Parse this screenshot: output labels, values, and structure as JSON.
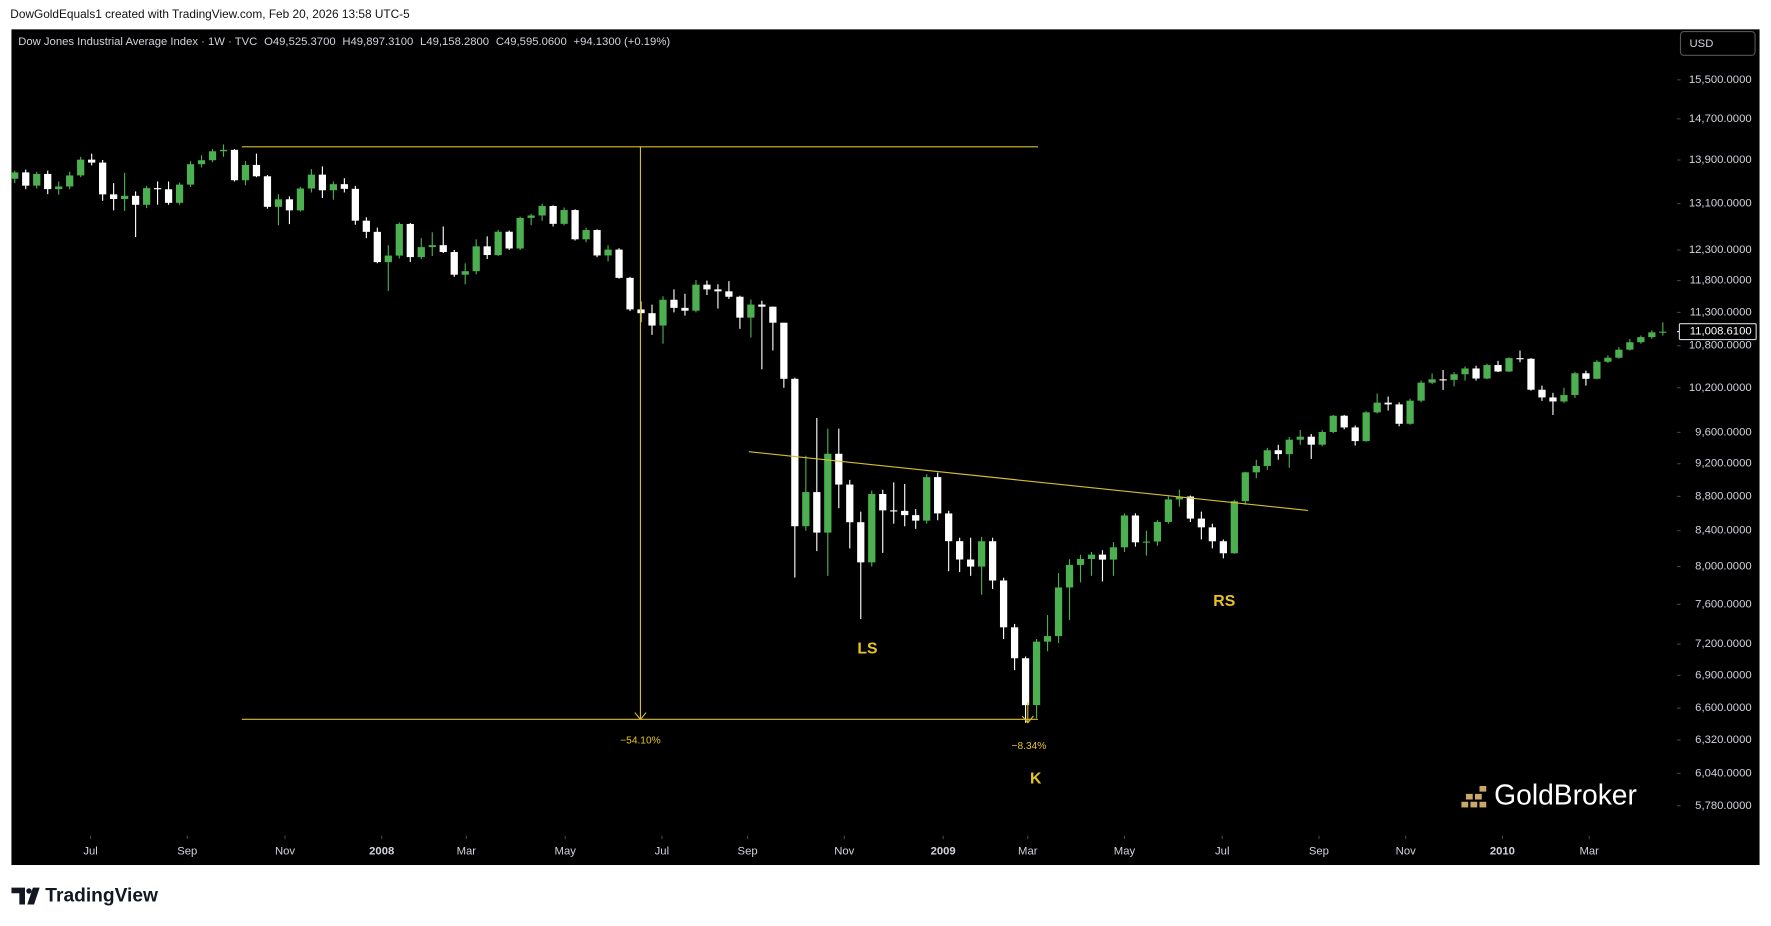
{
  "chart_data": {
    "type": "candlestick",
    "attribution": "DowGoldEquals1 created with TradingView.com, Feb 20, 2026 13:58 UTC-5",
    "title": "Dow Jones Industrial Average Index · 1W · TVC",
    "header_values": [
      "O49,525.3700",
      "H49,897.3100",
      "L49,158.2800",
      "C49,595.0600",
      "+94.1300 (+0.19%)"
    ],
    "currency": "USD",
    "log_scale": true,
    "up_color": "#4caf50",
    "down_color": "#ffffff",
    "drawing_color": "#d8bd2c",
    "ylim": [
      5550,
      16600
    ],
    "yticks": [
      {
        "value": 15500,
        "label": "15,500.0000"
      },
      {
        "value": 14700,
        "label": "14,700.0000"
      },
      {
        "value": 13900,
        "label": "13,900.0000"
      },
      {
        "value": 13100,
        "label": "13,100.0000"
      },
      {
        "value": 12300,
        "label": "12,300.0000"
      },
      {
        "value": 11800,
        "label": "11,800.0000"
      },
      {
        "value": 11300,
        "label": "11,300.0000"
      },
      {
        "value": 10800,
        "label": "10,800.0000"
      },
      {
        "value": 10200,
        "label": "10,200.0000"
      },
      {
        "value": 9600,
        "label": "9,600.0000"
      },
      {
        "value": 9200,
        "label": "9,200.0000"
      },
      {
        "value": 8800,
        "label": "8,800.0000"
      },
      {
        "value": 8400,
        "label": "8,400.0000"
      },
      {
        "value": 8000,
        "label": "8,000.0000"
      },
      {
        "value": 7600,
        "label": "7,600.0000"
      },
      {
        "value": 7200,
        "label": "7,200.0000"
      },
      {
        "value": 6900,
        "label": "6,900.0000"
      },
      {
        "value": 6600,
        "label": "6,600.0000"
      },
      {
        "value": 6320,
        "label": "6,320.0000"
      },
      {
        "value": 6040,
        "label": "6,040.0000"
      },
      {
        "value": 5780,
        "label": "5,780.0000"
      }
    ],
    "last_price": {
      "value": 11008.61,
      "label": "11,008.6100"
    },
    "xlim": [
      -0.3,
      151.3
    ],
    "xticks": [
      {
        "value": 6.9,
        "label": "Jul"
      },
      {
        "value": 15.7,
        "label": "Sep"
      },
      {
        "value": 24.6,
        "label": "Nov"
      },
      {
        "value": 33.4,
        "label": "2008"
      },
      {
        "value": 41.1,
        "label": "Mar"
      },
      {
        "value": 50.1,
        "label": "May"
      },
      {
        "value": 58.9,
        "label": "Jul"
      },
      {
        "value": 66.7,
        "label": "Sep"
      },
      {
        "value": 75.5,
        "label": "Nov"
      },
      {
        "value": 84.5,
        "label": "2009"
      },
      {
        "value": 92.2,
        "label": "Mar"
      },
      {
        "value": 101.0,
        "label": "May"
      },
      {
        "value": 109.9,
        "label": "Jul"
      },
      {
        "value": 118.7,
        "label": "Sep"
      },
      {
        "value": 126.6,
        "label": "Nov"
      },
      {
        "value": 135.4,
        "label": "2010"
      },
      {
        "value": 143.3,
        "label": "Mar"
      }
    ],
    "candles": [
      [
        13550,
        13700,
        13470,
        13668
      ],
      [
        13668,
        13720,
        13360,
        13424
      ],
      [
        13424,
        13680,
        13370,
        13639
      ],
      [
        13639,
        13700,
        13270,
        13361
      ],
      [
        13361,
        13500,
        13260,
        13409
      ],
      [
        13409,
        13680,
        13360,
        13612
      ],
      [
        13612,
        13960,
        13580,
        13907
      ],
      [
        13907,
        14020,
        13800,
        13851
      ],
      [
        13851,
        13900,
        13150,
        13266
      ],
      [
        13266,
        13470,
        12980,
        13182
      ],
      [
        13182,
        13660,
        12970,
        13240
      ],
      [
        13240,
        13320,
        12518,
        13079
      ],
      [
        13079,
        13420,
        13020,
        13379
      ],
      [
        13379,
        13500,
        13080,
        13358
      ],
      [
        13358,
        13500,
        13080,
        13114
      ],
      [
        13114,
        13480,
        13080,
        13443
      ],
      [
        13443,
        13880,
        13400,
        13821
      ],
      [
        13821,
        13990,
        13760,
        13896
      ],
      [
        13896,
        14110,
        13860,
        14066
      ],
      [
        14066,
        14198,
        13960,
        14093
      ],
      [
        14093,
        14110,
        13500,
        13523
      ],
      [
        13523,
        13880,
        13430,
        13807
      ],
      [
        13807,
        14020,
        13580,
        13596
      ],
      [
        13596,
        13620,
        13010,
        13043
      ],
      [
        13043,
        13270,
        12720,
        13177
      ],
      [
        13177,
        13230,
        12740,
        12981
      ],
      [
        12981,
        13400,
        12960,
        13372
      ],
      [
        13372,
        13730,
        13300,
        13626
      ],
      [
        13626,
        13780,
        13200,
        13340
      ],
      [
        13340,
        13500,
        13170,
        13451
      ],
      [
        13451,
        13560,
        13300,
        13366
      ],
      [
        13366,
        13420,
        12730,
        12800
      ],
      [
        12800,
        12860,
        12500,
        12607
      ],
      [
        12607,
        12680,
        12080,
        12099
      ],
      [
        12099,
        12380,
        11634,
        12207
      ],
      [
        12207,
        12770,
        12160,
        12743
      ],
      [
        12743,
        12760,
        12100,
        12182
      ],
      [
        12182,
        12500,
        12150,
        12348
      ],
      [
        12348,
        12600,
        12200,
        12381
      ],
      [
        12381,
        12700,
        12250,
        12266
      ],
      [
        12266,
        12300,
        11860,
        11894
      ],
      [
        11894,
        12080,
        11740,
        11951
      ],
      [
        11951,
        12480,
        11900,
        12361
      ],
      [
        12361,
        12530,
        12150,
        12216
      ],
      [
        12216,
        12640,
        12200,
        12609
      ],
      [
        12609,
        12630,
        12300,
        12325
      ],
      [
        12325,
        12870,
        12300,
        12849
      ],
      [
        12849,
        12920,
        12720,
        12891
      ],
      [
        12891,
        13100,
        12800,
        13058
      ],
      [
        13058,
        13070,
        12700,
        12745
      ],
      [
        12745,
        13030,
        12720,
        12986
      ],
      [
        12986,
        13000,
        12460,
        12480
      ],
      [
        12480,
        12680,
        12430,
        12638
      ],
      [
        12638,
        12650,
        12180,
        12209
      ],
      [
        12209,
        12380,
        12110,
        12307
      ],
      [
        12307,
        12330,
        11830,
        11843
      ],
      [
        11843,
        11860,
        11320,
        11346
      ],
      [
        11346,
        11470,
        11150,
        11288
      ],
      [
        11288,
        11420,
        10960,
        11100
      ],
      [
        11100,
        11550,
        10830,
        11496
      ],
      [
        11496,
        11660,
        11300,
        11370
      ],
      [
        11370,
        11590,
        11250,
        11326
      ],
      [
        11326,
        11810,
        11300,
        11734
      ],
      [
        11734,
        11800,
        11570,
        11659
      ],
      [
        11659,
        11740,
        11360,
        11628
      ],
      [
        11628,
        11790,
        11510,
        11543
      ],
      [
        11543,
        11560,
        11050,
        11220
      ],
      [
        11220,
        11500,
        10920,
        11421
      ],
      [
        11421,
        11480,
        10460,
        11388
      ],
      [
        11388,
        11390,
        10730,
        11143
      ],
      [
        11143,
        11140,
        10200,
        10325
      ],
      [
        10325,
        10340,
        7882,
        8451
      ],
      [
        8451,
        9300,
        8400,
        8852
      ],
      [
        8852,
        9790,
        8170,
        8378
      ],
      [
        8378,
        9650,
        7900,
        9325
      ],
      [
        9325,
        9650,
        8660,
        8943
      ],
      [
        8943,
        9000,
        8200,
        8497
      ],
      [
        8497,
        8620,
        7449,
        8046
      ],
      [
        8046,
        8870,
        8000,
        8829
      ],
      [
        8829,
        8880,
        8150,
        8635
      ],
      [
        8635,
        8970,
        8480,
        8629
      ],
      [
        8629,
        8950,
        8450,
        8579
      ],
      [
        8579,
        8650,
        8420,
        8515
      ],
      [
        8515,
        9070,
        8480,
        9034
      ],
      [
        9034,
        9090,
        8520,
        8599
      ],
      [
        8599,
        8630,
        7950,
        8281
      ],
      [
        8281,
        8320,
        7940,
        8077
      ],
      [
        8077,
        8320,
        7900,
        8000
      ],
      [
        8000,
        8330,
        7700,
        8280
      ],
      [
        8280,
        8320,
        7760,
        7850
      ],
      [
        7850,
        7880,
        7250,
        7366
      ],
      [
        7366,
        7400,
        6950,
        7063
      ],
      [
        7063,
        7080,
        6470,
        6627
      ],
      [
        6627,
        7250,
        6510,
        7224
      ],
      [
        7224,
        7490,
        7130,
        7279
      ],
      [
        7279,
        7930,
        7210,
        7776
      ],
      [
        7776,
        8080,
        7440,
        8018
      ],
      [
        8018,
        8130,
        7830,
        8083
      ],
      [
        8083,
        8160,
        7900,
        8131
      ],
      [
        8131,
        8180,
        7840,
        8076
      ],
      [
        8076,
        8270,
        7900,
        8212
      ],
      [
        8212,
        8600,
        8160,
        8575
      ],
      [
        8575,
        8600,
        8220,
        8268
      ],
      [
        8268,
        8400,
        8120,
        8277
      ],
      [
        8277,
        8520,
        8230,
        8500
      ],
      [
        8500,
        8800,
        8480,
        8764
      ],
      [
        8764,
        8880,
        8680,
        8799
      ],
      [
        8799,
        8810,
        8500,
        8539
      ],
      [
        8539,
        8620,
        8300,
        8438
      ],
      [
        8438,
        8480,
        8200,
        8280
      ],
      [
        8280,
        8300,
        8090,
        8146
      ],
      [
        8146,
        8760,
        8140,
        8743
      ],
      [
        8743,
        9100,
        8700,
        9093
      ],
      [
        9093,
        9250,
        9020,
        9172
      ],
      [
        9172,
        9400,
        9120,
        9370
      ],
      [
        9370,
        9440,
        9250,
        9321
      ],
      [
        9321,
        9540,
        9150,
        9505
      ],
      [
        9505,
        9630,
        9440,
        9544
      ],
      [
        9544,
        9580,
        9260,
        9441
      ],
      [
        9441,
        9630,
        9420,
        9605
      ],
      [
        9605,
        9830,
        9590,
        9820
      ],
      [
        9820,
        9830,
        9640,
        9665
      ],
      [
        9665,
        9690,
        9430,
        9487
      ],
      [
        9487,
        9880,
        9480,
        9865
      ],
      [
        9865,
        10120,
        9850,
        9996
      ],
      [
        9996,
        10080,
        9890,
        9972
      ],
      [
        9972,
        10000,
        9680,
        9713
      ],
      [
        9713,
        10050,
        9700,
        10023
      ],
      [
        10023,
        10300,
        10000,
        10271
      ],
      [
        10271,
        10400,
        10250,
        10318
      ],
      [
        10318,
        10450,
        10170,
        10310
      ],
      [
        10310,
        10420,
        10220,
        10389
      ],
      [
        10389,
        10500,
        10300,
        10471
      ],
      [
        10471,
        10510,
        10300,
        10329
      ],
      [
        10329,
        10540,
        10320,
        10520
      ],
      [
        10520,
        10580,
        10420,
        10428
      ],
      [
        10428,
        10630,
        10420,
        10619
      ],
      [
        10619,
        10730,
        10560,
        10610
      ],
      [
        10610,
        10620,
        10160,
        10173
      ],
      [
        10173,
        10230,
        10020,
        10067
      ],
      [
        10067,
        10130,
        9830,
        10012
      ],
      [
        10012,
        10200,
        9990,
        10100
      ],
      [
        10100,
        10420,
        10060,
        10403
      ],
      [
        10403,
        10440,
        10230,
        10325
      ],
      [
        10325,
        10590,
        10320,
        10567
      ],
      [
        10567,
        10660,
        10550,
        10625
      ],
      [
        10625,
        10780,
        10610,
        10742
      ],
      [
        10742,
        10900,
        10730,
        10851
      ],
      [
        10851,
        10950,
        10830,
        10927
      ],
      [
        10927,
        11030,
        10900,
        10998
      ],
      [
        10998,
        11150,
        10950,
        11008.61
      ]
    ],
    "annotations": [
      "LS",
      "K",
      "RS",
      "−54.10%",
      "−8.34%"
    ],
    "watermark": "GoldBroker",
    "footer": "TradingView"
  }
}
